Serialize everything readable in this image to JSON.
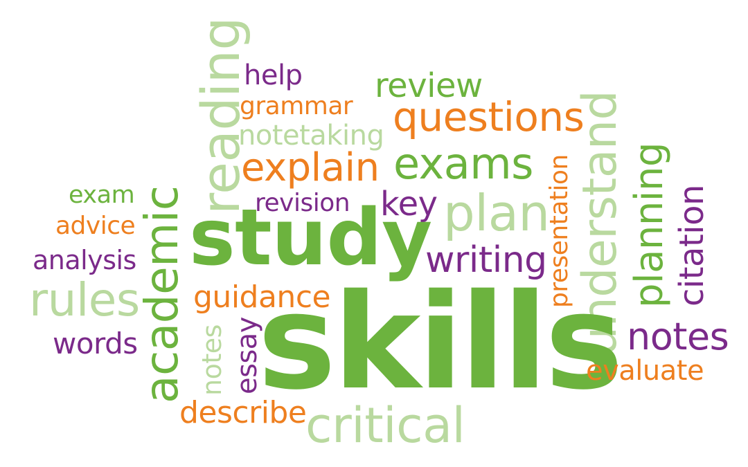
{
  "palette": {
    "dark_green": "#6cb33e",
    "light_green": "#b9d99f",
    "orange": "#ee7f1f",
    "purple": "#7b2a8a"
  },
  "words": {
    "skills": "skills",
    "study": "study",
    "reading": "reading",
    "academic": "academic",
    "understand": "understand",
    "planning": "planning",
    "citation": "citation",
    "presentation": "presentation",
    "help": "help",
    "grammar": "grammar",
    "notetaking": "notetaking",
    "review": "review",
    "questions": "questions",
    "explain": "explain",
    "exams": "exams",
    "exam": "exam",
    "advice": "advice",
    "analysis": "analysis",
    "rules": "rules",
    "words": "words",
    "revision": "revision",
    "key": "key",
    "plan": "plan",
    "writing": "writing",
    "guidance": "guidance",
    "notes_small": "notes",
    "essay": "essay",
    "notes_large": "notes",
    "evaluate": "evaluate",
    "describe": "describe",
    "critical": "critical"
  }
}
